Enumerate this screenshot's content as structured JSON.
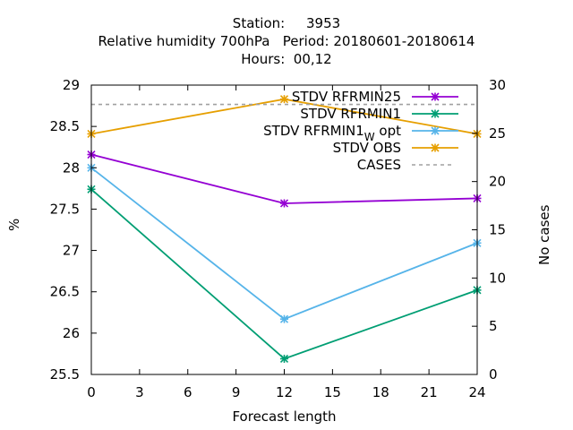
{
  "chart_data": {
    "type": "line",
    "title_lines": [
      "Station:     3953",
      "Relative humidity 700hPa   Period: 20180601-20180614",
      "Hours:  00,12"
    ],
    "xlabel": "Forecast length",
    "ylabel": "%",
    "y2label": "No cases",
    "xlim": [
      0,
      24
    ],
    "ylim": [
      25.5,
      29
    ],
    "y2lim": [
      0,
      30
    ],
    "xticks": [
      0,
      3,
      6,
      9,
      12,
      15,
      18,
      21,
      24
    ],
    "yticks": [
      "25.5",
      "26",
      "26.5",
      "27",
      "27.5",
      "28",
      "28.5",
      "29"
    ],
    "y2ticks": [
      0,
      5,
      10,
      15,
      20,
      25,
      30
    ],
    "grid": false,
    "legend_position": "top-right",
    "series": [
      {
        "name": "STDV RFRMIN25",
        "axis": "y",
        "color": "#9400d3",
        "style": "solid",
        "marker": "star",
        "x": [
          0,
          12,
          24
        ],
        "values": [
          28.16,
          27.57,
          27.63
        ]
      },
      {
        "name": "STDV RFRMIN1",
        "axis": "y",
        "color": "#009e73",
        "style": "solid",
        "marker": "star",
        "x": [
          0,
          12,
          24
        ],
        "values": [
          27.74,
          25.69,
          26.52
        ]
      },
      {
        "name_main": "STDV RFRMIN1",
        "name_sub": "W",
        "name_tail": " opt",
        "axis": "y",
        "color": "#56b4e9",
        "style": "solid",
        "marker": "star",
        "x": [
          0,
          12,
          24
        ],
        "values": [
          28.0,
          26.17,
          27.09
        ]
      },
      {
        "name": "STDV OBS",
        "axis": "y",
        "color": "#e69f00",
        "style": "solid",
        "marker": "star",
        "x": [
          0,
          12,
          24
        ],
        "values": [
          28.41,
          28.83,
          28.41
        ]
      },
      {
        "name": "CASES",
        "axis": "y2",
        "color": "#a0a0a0",
        "style": "dashed",
        "marker": "none",
        "x": [
          0,
          24
        ],
        "values": [
          28,
          28
        ]
      }
    ]
  }
}
